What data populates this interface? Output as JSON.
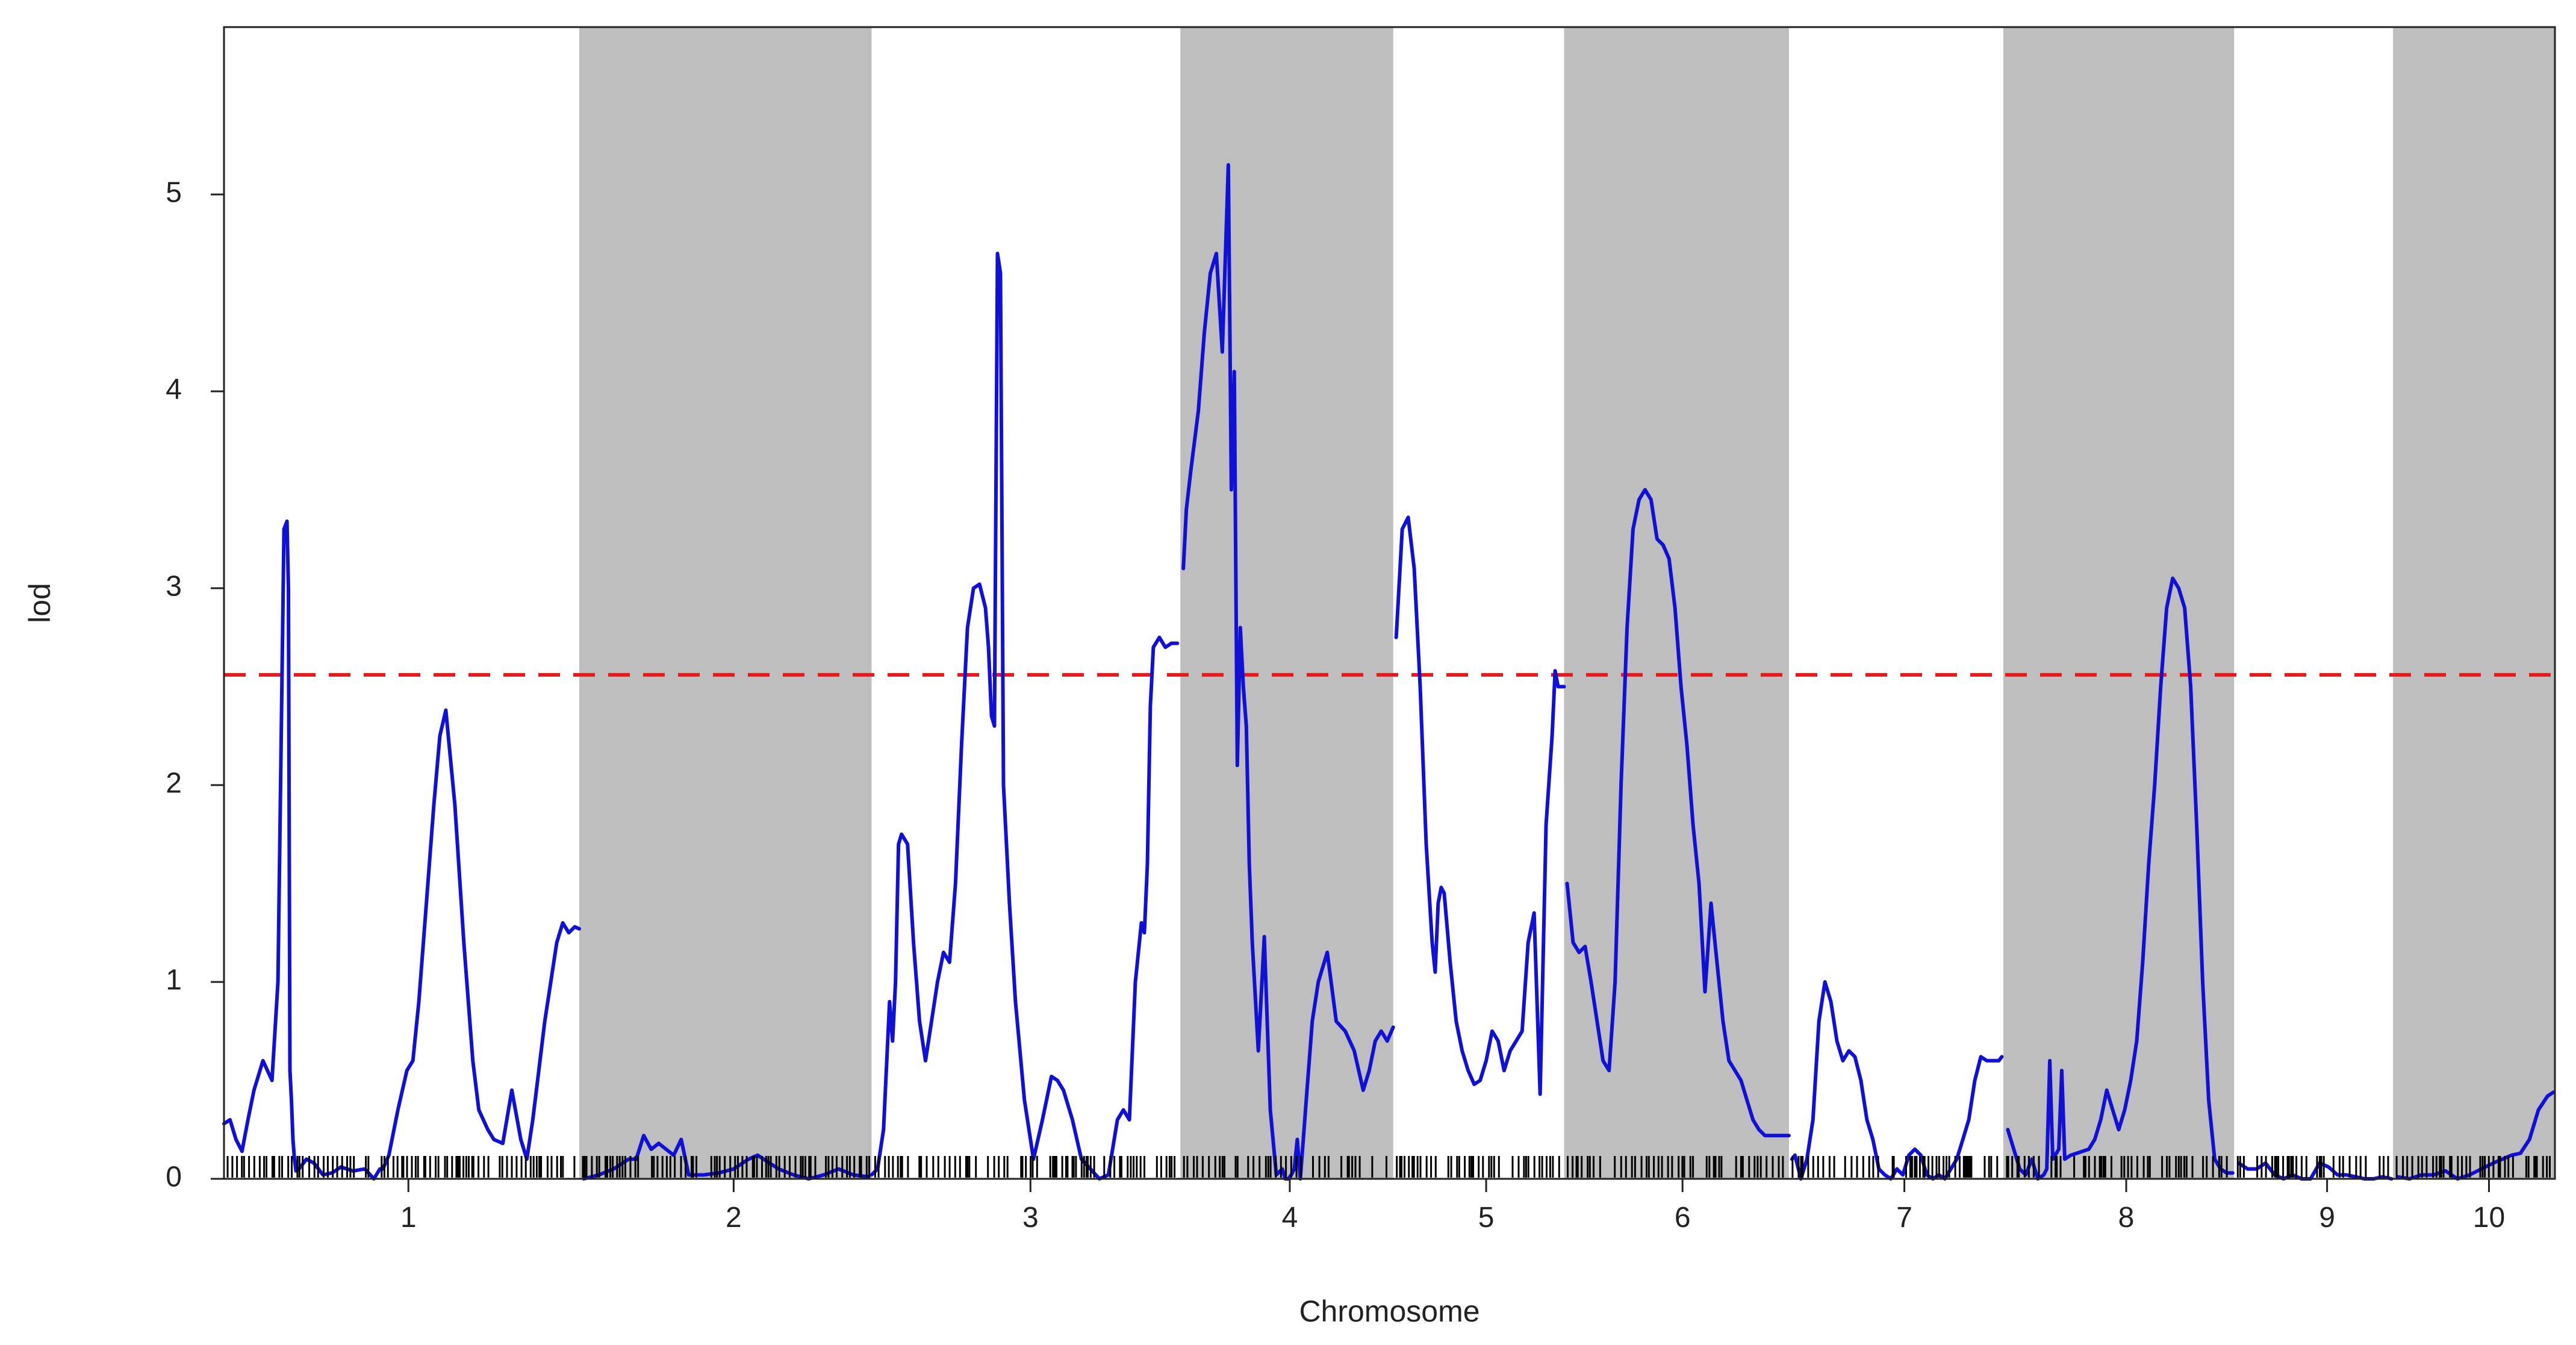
{
  "chart_data": {
    "type": "line",
    "title": "",
    "xlabel": "Chromosome",
    "ylabel": "lod",
    "ylim": [
      0,
      5.85
    ],
    "y_ticks": [
      0,
      1,
      2,
      3,
      4,
      5
    ],
    "grid": false,
    "legend": "none",
    "threshold": {
      "value": 2.56,
      "color": "#e41a1c",
      "style": "dashed"
    },
    "colors": {
      "line": "#1010d8",
      "shade": "#bebebe",
      "threshold": "#e41a1c",
      "axis": "#222222",
      "markers": "#000000"
    },
    "x_range_cM": [
      0,
      1555
    ],
    "chromosomes": [
      {
        "name": "1",
        "start": 0,
        "end": 237,
        "shaded": false
      },
      {
        "name": "2",
        "start": 237,
        "end": 432,
        "shaded": true
      },
      {
        "name": "3",
        "start": 432,
        "end": 638,
        "shaded": false
      },
      {
        "name": "4",
        "start": 638,
        "end": 780,
        "shaded": true
      },
      {
        "name": "5",
        "start": 780,
        "end": 894,
        "shaded": false
      },
      {
        "name": "6",
        "start": 894,
        "end": 1044,
        "shaded": true
      },
      {
        "name": "7",
        "start": 1044,
        "end": 1187,
        "shaded": false
      },
      {
        "name": "8",
        "start": 1187,
        "end": 1341,
        "shaded": true
      },
      {
        "name": "9",
        "start": 1341,
        "end": 1447,
        "shaded": false
      },
      {
        "name": "10",
        "start": 1447,
        "end": 1555,
        "shaded": true
      }
    ],
    "x_tick_labels": [
      {
        "label": "1",
        "x": 123
      },
      {
        "label": "2",
        "x": 340
      },
      {
        "label": "3",
        "x": 538
      },
      {
        "label": "4",
        "x": 711
      },
      {
        "label": "5",
        "x": 842
      },
      {
        "label": "6",
        "x": 973
      },
      {
        "label": "7",
        "x": 1121
      },
      {
        "label": "8",
        "x": 1269
      },
      {
        "label": "9",
        "x": 1403
      },
      {
        "label": "10",
        "x": 1511
      }
    ],
    "series": [
      {
        "chromosome": "1",
        "x": [
          0,
          4,
          8,
          12,
          16,
          20,
          26,
          32,
          36,
          40,
          42,
          43,
          44,
          45,
          46,
          47,
          48,
          50,
          55,
          60,
          66,
          72,
          78,
          86,
          94,
          100,
          104,
          106,
          110,
          116,
          122,
          126,
          130,
          135,
          140,
          144,
          148,
          154,
          160,
          166,
          170,
          176,
          180,
          186,
          192,
          198,
          202,
          206,
          210,
          214,
          218,
          222,
          226,
          230,
          234,
          237
        ],
        "y": [
          0.28,
          0.3,
          0.2,
          0.14,
          0.3,
          0.45,
          0.6,
          0.5,
          1.0,
          3.3,
          3.34,
          3.0,
          0.55,
          0.4,
          0.2,
          0.1,
          0.04,
          0.05,
          0.1,
          0.08,
          0.02,
          0.03,
          0.06,
          0.04,
          0.05,
          0.0,
          0.05,
          0.05,
          0.12,
          0.35,
          0.55,
          0.6,
          0.9,
          1.4,
          1.9,
          2.25,
          2.38,
          1.9,
          1.2,
          0.6,
          0.35,
          0.25,
          0.2,
          0.18,
          0.45,
          0.2,
          0.1,
          0.3,
          0.55,
          0.8,
          1.0,
          1.2,
          1.3,
          1.25,
          1.28,
          1.27
        ]
      },
      {
        "chromosome": "2",
        "x": [
          240,
          250,
          260,
          270,
          275,
          280,
          285,
          290,
          300,
          305,
          310,
          320,
          330,
          340,
          350,
          356,
          360,
          370,
          380,
          390,
          400,
          410,
          420,
          430
        ],
        "y": [
          0.0,
          0.02,
          0.05,
          0.1,
          0.1,
          0.22,
          0.15,
          0.18,
          0.12,
          0.2,
          0.02,
          0.02,
          0.03,
          0.05,
          0.1,
          0.12,
          0.1,
          0.05,
          0.02,
          0.0,
          0.02,
          0.05,
          0.02,
          0.01
        ]
      },
      {
        "chromosome": "3",
        "x": [
          432,
          436,
          440,
          444,
          446,
          448,
          450,
          452,
          456,
          460,
          464,
          468,
          472,
          476,
          480,
          484,
          488,
          492,
          496,
          500,
          504,
          508,
          510,
          512,
          514,
          516,
          518,
          520,
          524,
          528,
          534,
          540,
          546,
          552,
          556,
          560,
          566,
          572,
          578,
          584,
          590,
          596,
          600,
          604,
          608,
          612,
          614,
          616,
          618,
          620,
          624,
          628,
          632,
          636
        ],
        "y": [
          0.02,
          0.05,
          0.25,
          0.9,
          0.7,
          1.0,
          1.7,
          1.75,
          1.7,
          1.2,
          0.8,
          0.6,
          0.8,
          1.0,
          1.15,
          1.1,
          1.5,
          2.2,
          2.8,
          3.0,
          3.02,
          2.9,
          2.7,
          2.35,
          2.3,
          4.7,
          4.6,
          2.0,
          1.4,
          0.9,
          0.4,
          0.1,
          0.3,
          0.52,
          0.5,
          0.45,
          0.3,
          0.1,
          0.05,
          0.0,
          0.02,
          0.3,
          0.35,
          0.3,
          1.0,
          1.3,
          1.25,
          1.6,
          2.4,
          2.7,
          2.75,
          2.7,
          2.72,
          2.72
        ]
      },
      {
        "chromosome": "4",
        "x": [
          640,
          642,
          645,
          650,
          654,
          658,
          662,
          666,
          670,
          672,
          674,
          676,
          678,
          680,
          682,
          684,
          686,
          690,
          694,
          698,
          702,
          706,
          708,
          710,
          712,
          714,
          716,
          718,
          720,
          722,
          724,
          726,
          730,
          736,
          742,
          748,
          754,
          760,
          764,
          768,
          772,
          776,
          780
        ],
        "y": [
          3.1,
          3.4,
          3.6,
          3.9,
          4.3,
          4.6,
          4.7,
          4.2,
          5.15,
          3.5,
          4.1,
          2.1,
          2.8,
          2.5,
          2.3,
          1.6,
          1.2,
          0.65,
          1.23,
          0.35,
          0.02,
          0.05,
          0.0,
          0.0,
          0.02,
          0.05,
          0.2,
          0.0,
          0.2,
          0.4,
          0.6,
          0.8,
          1.0,
          1.15,
          0.8,
          0.75,
          0.65,
          0.45,
          0.55,
          0.7,
          0.75,
          0.7,
          0.77
        ]
      },
      {
        "chromosome": "5",
        "x": [
          782,
          786,
          790,
          794,
          798,
          802,
          806,
          808,
          810,
          812,
          814,
          818,
          822,
          826,
          830,
          834,
          838,
          842,
          846,
          850,
          854,
          858,
          862,
          866,
          870,
          874,
          878,
          882,
          886,
          888,
          890,
          892,
          894
        ],
        "y": [
          2.75,
          3.3,
          3.36,
          3.1,
          2.5,
          1.7,
          1.2,
          1.05,
          1.4,
          1.48,
          1.45,
          1.1,
          0.8,
          0.65,
          0.55,
          0.48,
          0.5,
          0.6,
          0.75,
          0.7,
          0.55,
          0.65,
          0.7,
          0.75,
          1.2,
          1.35,
          0.43,
          1.8,
          2.25,
          2.58,
          2.5,
          2.5,
          2.5
        ]
      },
      {
        "chromosome": "6",
        "x": [
          896,
          900,
          904,
          908,
          912,
          916,
          920,
          924,
          928,
          932,
          936,
          940,
          944,
          948,
          952,
          956,
          960,
          964,
          968,
          972,
          976,
          980,
          984,
          988,
          992,
          996,
          1000,
          1004,
          1008,
          1012,
          1016,
          1020,
          1024,
          1028,
          1032,
          1036,
          1040,
          1044
        ],
        "y": [
          1.5,
          1.2,
          1.15,
          1.18,
          1.0,
          0.8,
          0.6,
          0.55,
          1.0,
          2.0,
          2.8,
          3.3,
          3.45,
          3.5,
          3.45,
          3.25,
          3.22,
          3.15,
          2.9,
          2.5,
          2.2,
          1.8,
          1.5,
          0.95,
          1.4,
          1.1,
          0.8,
          0.6,
          0.55,
          0.5,
          0.4,
          0.3,
          0.25,
          0.22,
          0.22,
          0.22,
          0.22,
          0.22
        ]
      },
      {
        "chromosome": "7",
        "x": [
          1046,
          1048,
          1052,
          1056,
          1060,
          1064,
          1068,
          1072,
          1076,
          1080,
          1084,
          1088,
          1092,
          1096,
          1100,
          1104,
          1108,
          1112,
          1116,
          1120,
          1124,
          1128,
          1132,
          1136,
          1140,
          1144,
          1148,
          1152,
          1156,
          1160,
          1164,
          1168,
          1172,
          1176,
          1180,
          1184,
          1186
        ],
        "y": [
          0.1,
          0.12,
          0.0,
          0.1,
          0.3,
          0.8,
          1.0,
          0.9,
          0.7,
          0.6,
          0.65,
          0.62,
          0.5,
          0.3,
          0.2,
          0.05,
          0.02,
          0.0,
          0.05,
          0.02,
          0.12,
          0.15,
          0.12,
          0.02,
          0.0,
          0.02,
          0.0,
          0.05,
          0.1,
          0.2,
          0.3,
          0.5,
          0.62,
          0.6,
          0.6,
          0.6,
          0.62
        ]
      },
      {
        "chromosome": "8",
        "x": [
          1190,
          1194,
          1198,
          1202,
          1206,
          1210,
          1214,
          1216,
          1218,
          1220,
          1224,
          1226,
          1228,
          1232,
          1236,
          1240,
          1244,
          1248,
          1252,
          1256,
          1260,
          1262,
          1264,
          1268,
          1272,
          1276,
          1280,
          1284,
          1288,
          1292,
          1296,
          1300,
          1304,
          1308,
          1312,
          1316,
          1320,
          1324,
          1328,
          1332,
          1336,
          1340
        ],
        "y": [
          0.25,
          0.15,
          0.05,
          0.02,
          0.1,
          0.0,
          0.02,
          0.05,
          0.6,
          0.1,
          0.15,
          0.55,
          0.1,
          0.12,
          0.13,
          0.14,
          0.15,
          0.2,
          0.3,
          0.45,
          0.35,
          0.3,
          0.25,
          0.35,
          0.5,
          0.7,
          1.1,
          1.6,
          2.0,
          2.5,
          2.9,
          3.05,
          3.0,
          2.9,
          2.5,
          1.8,
          1.0,
          0.4,
          0.1,
          0.05,
          0.03,
          0.03
        ]
      },
      {
        "chromosome": "9",
        "x": [
          1344,
          1350,
          1356,
          1362,
          1368,
          1374,
          1380,
          1386,
          1392,
          1398,
          1404,
          1410,
          1416,
          1422,
          1428,
          1434,
          1440,
          1446
        ],
        "y": [
          0.08,
          0.05,
          0.05,
          0.08,
          0.02,
          0.0,
          0.02,
          0.0,
          0.0,
          0.08,
          0.06,
          0.02,
          0.02,
          0.01,
          0.0,
          0.0,
          0.01,
          0.0
        ]
      },
      {
        "chromosome": "10",
        "x": [
          1450,
          1458,
          1466,
          1474,
          1482,
          1490,
          1498,
          1506,
          1514,
          1520,
          1526,
          1532,
          1538,
          1544,
          1550,
          1554
        ],
        "y": [
          0.01,
          0.0,
          0.02,
          0.02,
          0.04,
          0.0,
          0.02,
          0.05,
          0.08,
          0.1,
          0.12,
          0.13,
          0.2,
          0.35,
          0.42,
          0.44
        ]
      }
    ]
  }
}
